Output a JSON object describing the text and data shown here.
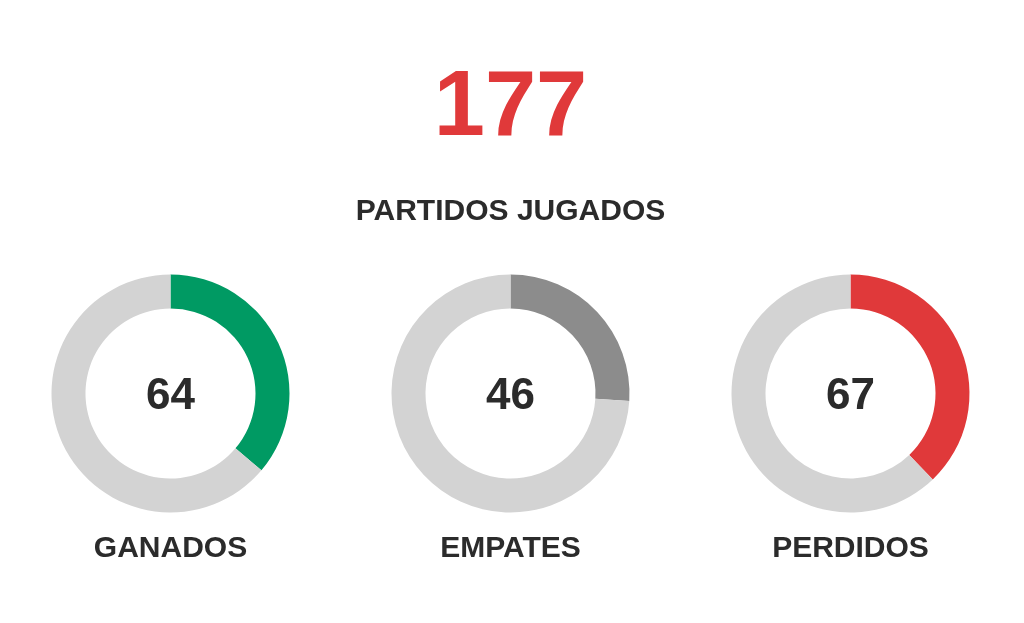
{
  "chart_data": [
    {
      "type": "other",
      "title": "177",
      "subtitle": "PARTIDOS JUGADOS"
    },
    {
      "type": "donut",
      "title": "GANADOS",
      "categories": [
        null,
        null
      ],
      "values": [
        64,
        113
      ],
      "colors": [
        "#009a63",
        "#d3d3d3"
      ],
      "value_labels": [
        "64",
        null
      ]
    },
    {
      "type": "donut",
      "title": "EMPATES",
      "categories": [
        null,
        null
      ],
      "values": [
        46,
        131
      ],
      "colors": [
        "#8c8c8c",
        "#d3d3d3"
      ],
      "value_labels": [
        "46",
        null
      ]
    },
    {
      "type": "donut",
      "title": "PERDIDOS",
      "categories": [
        null,
        null
      ],
      "values": [
        67,
        110
      ],
      "colors": [
        "#e0393a",
        "#d3d3d3"
      ],
      "value_labels": [
        "67",
        null
      ]
    }
  ]
}
